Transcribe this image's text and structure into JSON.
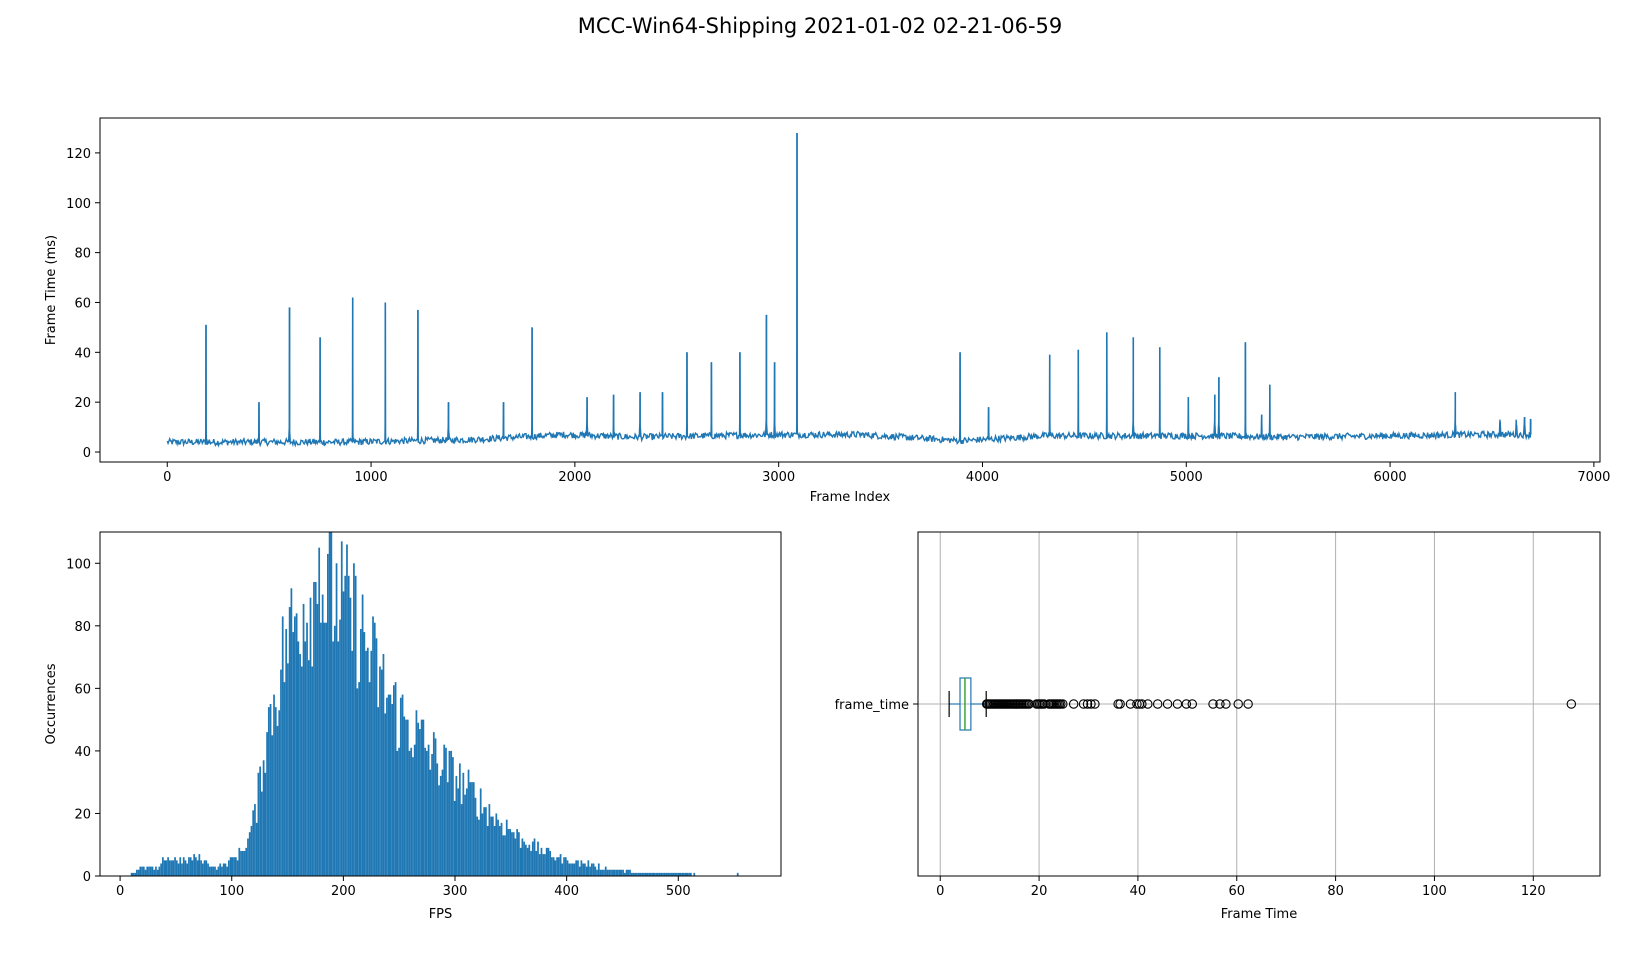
{
  "figure_title": "MCC-Win64-Shipping 2021-01-02 02-21-06-59",
  "colors": {
    "series": "#1f77b4",
    "median": "#2ca02c",
    "grid": "#b0b0b0",
    "axis": "#000000"
  },
  "chart_data": [
    {
      "type": "line",
      "title": "",
      "xlabel": "Frame Index",
      "ylabel": "Frame Time (ms)",
      "xlim": [
        -330,
        7030
      ],
      "ylim": [
        -4,
        134
      ],
      "xticks": [
        "0",
        "1000",
        "2000",
        "3000",
        "4000",
        "5000",
        "6000",
        "7000"
      ],
      "yticks": [
        "0",
        "20",
        "40",
        "60",
        "80",
        "100",
        "120"
      ],
      "n_frames": 6690,
      "baseline": [
        [
          0,
          4.0
        ],
        [
          900,
          4.0
        ],
        [
          1500,
          5.0
        ],
        [
          1950,
          7.0
        ],
        [
          2300,
          6.0
        ],
        [
          3000,
          7.0
        ],
        [
          3400,
          7.0
        ],
        [
          3900,
          4.5
        ],
        [
          4300,
          6.5
        ],
        [
          5100,
          6.5
        ],
        [
          5500,
          6.0
        ],
        [
          6000,
          6.5
        ],
        [
          6400,
          7.0
        ],
        [
          6690,
          7.0
        ]
      ],
      "spikes": [
        {
          "x": 190,
          "y": 51
        },
        {
          "x": 450,
          "y": 20
        },
        {
          "x": 600,
          "y": 58
        },
        {
          "x": 750,
          "y": 46
        },
        {
          "x": 910,
          "y": 62
        },
        {
          "x": 1070,
          "y": 60
        },
        {
          "x": 1230,
          "y": 57
        },
        {
          "x": 1380,
          "y": 20
        },
        {
          "x": 1650,
          "y": 20
        },
        {
          "x": 1790,
          "y": 50
        },
        {
          "x": 2060,
          "y": 22
        },
        {
          "x": 2190,
          "y": 23
        },
        {
          "x": 2320,
          "y": 24
        },
        {
          "x": 2430,
          "y": 24
        },
        {
          "x": 2550,
          "y": 40
        },
        {
          "x": 2670,
          "y": 36
        },
        {
          "x": 2810,
          "y": 40
        },
        {
          "x": 2940,
          "y": 55
        },
        {
          "x": 2980,
          "y": 36
        },
        {
          "x": 3090,
          "y": 128
        },
        {
          "x": 3890,
          "y": 40
        },
        {
          "x": 4030,
          "y": 18
        },
        {
          "x": 4330,
          "y": 39
        },
        {
          "x": 4470,
          "y": 41
        },
        {
          "x": 4610,
          "y": 48
        },
        {
          "x": 4740,
          "y": 46
        },
        {
          "x": 4870,
          "y": 42
        },
        {
          "x": 5010,
          "y": 22
        },
        {
          "x": 5140,
          "y": 23
        },
        {
          "x": 5160,
          "y": 30
        },
        {
          "x": 5290,
          "y": 44
        },
        {
          "x": 5370,
          "y": 15
        },
        {
          "x": 5410,
          "y": 27
        },
        {
          "x": 6320,
          "y": 24
        },
        {
          "x": 6540,
          "y": 12
        },
        {
          "x": 6620,
          "y": 10
        },
        {
          "x": 6660,
          "y": 14
        },
        {
          "x": 6690,
          "y": 13
        }
      ]
    },
    {
      "type": "bar",
      "title": "",
      "xlabel": "FPS",
      "ylabel": "Occurrences",
      "xlim": [
        -18,
        592
      ],
      "ylim": [
        0,
        110
      ],
      "xticks": [
        "0",
        "100",
        "200",
        "300",
        "400",
        "500"
      ],
      "yticks": [
        "0",
        "20",
        "40",
        "60",
        "80",
        "100"
      ],
      "bins": 360,
      "range": [
        8,
        568
      ],
      "envelope": [
        [
          8,
          0
        ],
        [
          15,
          2
        ],
        [
          25,
          3
        ],
        [
          35,
          2
        ],
        [
          40,
          6
        ],
        [
          55,
          5
        ],
        [
          70,
          6
        ],
        [
          85,
          3
        ],
        [
          95,
          4
        ],
        [
          105,
          7
        ],
        [
          115,
          12
        ],
        [
          122,
          22
        ],
        [
          130,
          45
        ],
        [
          140,
          62
        ],
        [
          150,
          78
        ],
        [
          160,
          86
        ],
        [
          170,
          92
        ],
        [
          180,
          94
        ],
        [
          190,
          92
        ],
        [
          200,
          90
        ],
        [
          210,
          84
        ],
        [
          220,
          76
        ],
        [
          235,
          62
        ],
        [
          250,
          53
        ],
        [
          265,
          47
        ],
        [
          280,
          40
        ],
        [
          300,
          33
        ],
        [
          320,
          25
        ],
        [
          340,
          18
        ],
        [
          360,
          12
        ],
        [
          380,
          8
        ],
        [
          400,
          5
        ],
        [
          420,
          4
        ],
        [
          440,
          2
        ],
        [
          470,
          1
        ],
        [
          500,
          1
        ],
        [
          530,
          0
        ],
        [
          568,
          0
        ]
      ],
      "peak": {
        "x": 179,
        "y": 105
      }
    },
    {
      "type": "box",
      "title": "",
      "xlabel": "Frame Time",
      "ylabel": "",
      "category": "frame_time",
      "xlim": [
        -4.5,
        133.5
      ],
      "xticks": [
        "0",
        "20",
        "40",
        "60",
        "80",
        "100",
        "120"
      ],
      "whisker_low": 1.8,
      "q1": 4.0,
      "median": 5.0,
      "q3": 6.2,
      "whisker_high": 9.3,
      "outliers": [
        9.4,
        9.6,
        9.9,
        10.2,
        10.5,
        10.8,
        11.1,
        11.4,
        11.7,
        12.0,
        12.3,
        12.6,
        12.9,
        13.2,
        13.5,
        13.8,
        14.1,
        14.4,
        14.7,
        15.0,
        15.3,
        15.6,
        15.9,
        16.2,
        16.5,
        16.8,
        17.1,
        17.4,
        17.7,
        18.0,
        19.5,
        19.8,
        20.1,
        20.4,
        20.7,
        21.0,
        22.0,
        22.3,
        22.6,
        22.9,
        23.2,
        23.5,
        23.8,
        24.1,
        24.4,
        24.8,
        27.0,
        29.0,
        29.8,
        30.5,
        31.3,
        36.0,
        36.4,
        38.5,
        39.8,
        40.3,
        40.8,
        42.0,
        44.0,
        46.0,
        48.0,
        49.8,
        51.0,
        55.2,
        56.6,
        57.8,
        60.3,
        62.3,
        127.7
      ]
    }
  ]
}
